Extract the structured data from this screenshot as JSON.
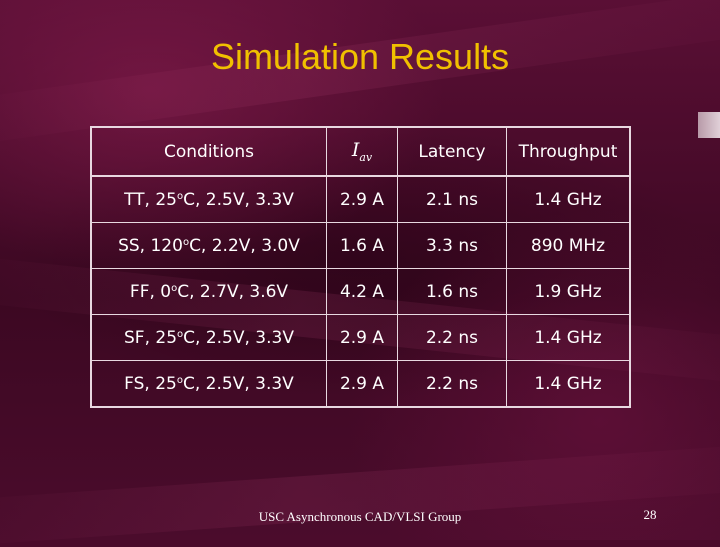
{
  "slide": {
    "title": "Simulation Results",
    "footer": "USC Asynchronous CAD/VLSI Group",
    "page_number": "28"
  },
  "table": {
    "headers": {
      "conditions": "Conditions",
      "current_symbol": "I",
      "current_subscript": "av",
      "latency": "Latency",
      "throughput": "Throughput"
    },
    "rows": [
      {
        "cond_pre": "TT, 25",
        "deg": "o",
        "cond_post": "C, 2.5V, 3.3V",
        "iav": "2.9 A",
        "latency": "2.1 ns",
        "throughput": "1.4 GHz"
      },
      {
        "cond_pre": "SS, 120",
        "deg": "o",
        "cond_post": "C, 2.2V, 3.0V",
        "iav": "1.6 A",
        "latency": "3.3 ns",
        "throughput": "890 MHz"
      },
      {
        "cond_pre": "FF, 0",
        "deg": "o",
        "cond_post": "C, 2.7V, 3.6V",
        "iav": "4.2 A",
        "latency": "1.6 ns",
        "throughput": "1.9 GHz"
      },
      {
        "cond_pre": "SF, 25",
        "deg": "o",
        "cond_post": "C, 2.5V, 3.3V",
        "iav": "2.9 A",
        "latency": "2.2 ns",
        "throughput": "1.4 GHz"
      },
      {
        "cond_pre": "FS, 25",
        "deg": "o",
        "cond_post": "C, 2.5V, 3.3V",
        "iav": "2.9 A",
        "latency": "2.2 ns",
        "throughput": "1.4 GHz"
      }
    ]
  },
  "colors": {
    "title": "#f0c000",
    "text": "#ffffff",
    "background": "#4a0a2a"
  }
}
